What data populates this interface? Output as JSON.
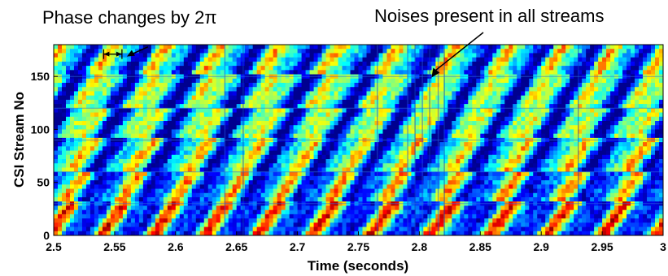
{
  "chart_data": {
    "type": "heatmap",
    "title": "",
    "xlabel": "Time (seconds)",
    "ylabel": "CSI Stream No",
    "xlim": [
      2.5,
      3.0
    ],
    "ylim": [
      0,
      180
    ],
    "x_ticks": [
      "2.5",
      "2.55",
      "2.6",
      "2.65",
      "2.7",
      "2.75",
      "2.8",
      "2.85",
      "2.9",
      "2.95",
      "3"
    ],
    "y_ticks": [
      "0",
      "50",
      "100",
      "150"
    ],
    "colormap": [
      "#00008f",
      "#0000ff",
      "#0080ff",
      "#00ffff",
      "#80ff80",
      "#ffff00",
      "#ff8000",
      "#ff0000",
      "#800000"
    ],
    "stream_blocks": [
      0,
      30,
      60,
      90,
      120,
      150,
      180
    ],
    "description_pattern": "diagonal stripes of phase values wrapping every 2pi; vertical noise lines near 2.79-2.82 s",
    "annotations": [
      {
        "id": "phase",
        "text": "Phase changes by 2π",
        "x_start": 2.541,
        "x_end": 2.556,
        "y": 168
      },
      {
        "id": "noise",
        "text": "Noises present in all streams",
        "x": 2.81,
        "y": 149
      }
    ]
  }
}
